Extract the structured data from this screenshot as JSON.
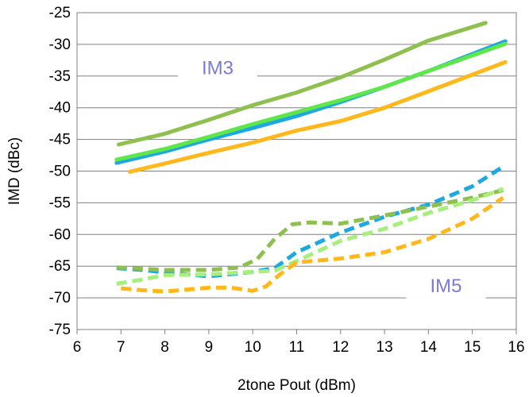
{
  "chart_data": {
    "type": "line",
    "xlabel": "2tone Pout (dBm)",
    "ylabel": "IMD (dBc)",
    "xlim": [
      6,
      16
    ],
    "ylim": [
      -75,
      -25
    ],
    "xticks": [
      6,
      7,
      8,
      9,
      10,
      11,
      12,
      13,
      14,
      15,
      16
    ],
    "yticks": [
      -25,
      -30,
      -35,
      -40,
      -45,
      -50,
      -55,
      -60,
      -65,
      -70,
      -75
    ],
    "grid": true,
    "legend": "none",
    "annotations": [
      {
        "text": "IM3",
        "x": 9.2,
        "y": -34.2
      },
      {
        "text": "IM5",
        "x": 14.4,
        "y": -68.6
      }
    ],
    "series": [
      {
        "group": "IM3",
        "color": "#8dc04e",
        "style": "solid",
        "points": [
          [
            6.95,
            -45.8
          ],
          [
            8,
            -44.1
          ],
          [
            9,
            -41.9
          ],
          [
            10,
            -39.6
          ],
          [
            11,
            -37.6
          ],
          [
            12,
            -35.2
          ],
          [
            13,
            -32.4
          ],
          [
            14,
            -29.4
          ],
          [
            15.3,
            -26.6
          ]
        ]
      },
      {
        "group": "IM3",
        "color": "#1ba8e3",
        "style": "solid",
        "points": [
          [
            6.9,
            -48.7
          ],
          [
            8,
            -46.9
          ],
          [
            9,
            -45.0
          ],
          [
            10,
            -43.2
          ],
          [
            11,
            -41.3
          ],
          [
            12,
            -39.1
          ],
          [
            13,
            -36.7
          ],
          [
            14,
            -34.2
          ],
          [
            15.75,
            -29.5
          ]
        ]
      },
      {
        "group": "IM3",
        "color": "#5ee64a",
        "style": "solid",
        "points": [
          [
            6.9,
            -48.2
          ],
          [
            8,
            -46.5
          ],
          [
            9,
            -44.6
          ],
          [
            10,
            -42.6
          ],
          [
            11,
            -40.7
          ],
          [
            12,
            -38.8
          ],
          [
            13,
            -36.7
          ],
          [
            14,
            -34.2
          ],
          [
            15.75,
            -29.9
          ]
        ]
      },
      {
        "group": "IM3",
        "color": "#ffb81c",
        "style": "solid",
        "points": [
          [
            7.2,
            -50.1
          ],
          [
            8,
            -48.8
          ],
          [
            9,
            -47.1
          ],
          [
            10,
            -45.5
          ],
          [
            11,
            -43.6
          ],
          [
            12,
            -42.1
          ],
          [
            13,
            -40.0
          ],
          [
            14,
            -37.4
          ],
          [
            15.75,
            -32.8
          ]
        ]
      },
      {
        "group": "IM5",
        "color": "#1ba8e3",
        "style": "dashed",
        "points": [
          [
            6.9,
            -65.3
          ],
          [
            7.5,
            -65.6
          ],
          [
            8,
            -66.0
          ],
          [
            9,
            -66.6
          ],
          [
            10,
            -65.9
          ],
          [
            10.5,
            -65.3
          ],
          [
            11,
            -62.8
          ],
          [
            12,
            -59.7
          ],
          [
            13,
            -57.2
          ],
          [
            14,
            -55.3
          ],
          [
            15,
            -52.4
          ],
          [
            15.7,
            -49.3
          ]
        ]
      },
      {
        "group": "IM5",
        "color": "#8dc04e",
        "style": "dashed",
        "points": [
          [
            6.9,
            -65.2
          ],
          [
            8,
            -65.6
          ],
          [
            9,
            -65.6
          ],
          [
            9.7,
            -65.2
          ],
          [
            10.1,
            -63.9
          ],
          [
            10.5,
            -60.7
          ],
          [
            10.9,
            -58.4
          ],
          [
            11.3,
            -58.1
          ],
          [
            12,
            -58.3
          ],
          [
            13,
            -57.0
          ],
          [
            14,
            -55.6
          ],
          [
            15,
            -54.2
          ],
          [
            15.7,
            -53.0
          ]
        ]
      },
      {
        "group": "IM5",
        "color": "#a6ef7c",
        "style": "dashed",
        "points": [
          [
            6.9,
            -67.8
          ],
          [
            7.5,
            -67.1
          ],
          [
            8,
            -66.4
          ],
          [
            9,
            -66.3
          ],
          [
            10,
            -65.9
          ],
          [
            10.5,
            -65.7
          ],
          [
            11,
            -64.2
          ],
          [
            12,
            -61.0
          ],
          [
            13,
            -59.1
          ],
          [
            14,
            -56.6
          ],
          [
            15,
            -54.6
          ],
          [
            15.7,
            -52.8
          ]
        ]
      },
      {
        "group": "IM5",
        "color": "#ffb81c",
        "style": "dashed",
        "points": [
          [
            7,
            -68.5
          ],
          [
            7.5,
            -68.8
          ],
          [
            8,
            -69.0
          ],
          [
            9,
            -68.4
          ],
          [
            9.5,
            -68.4
          ],
          [
            10,
            -68.9
          ],
          [
            10.3,
            -68.2
          ],
          [
            10.6,
            -66.4
          ],
          [
            11,
            -64.4
          ],
          [
            12,
            -63.8
          ],
          [
            13,
            -62.8
          ],
          [
            14,
            -60.7
          ],
          [
            15,
            -57.5
          ],
          [
            15.7,
            -54.2
          ]
        ]
      }
    ]
  }
}
